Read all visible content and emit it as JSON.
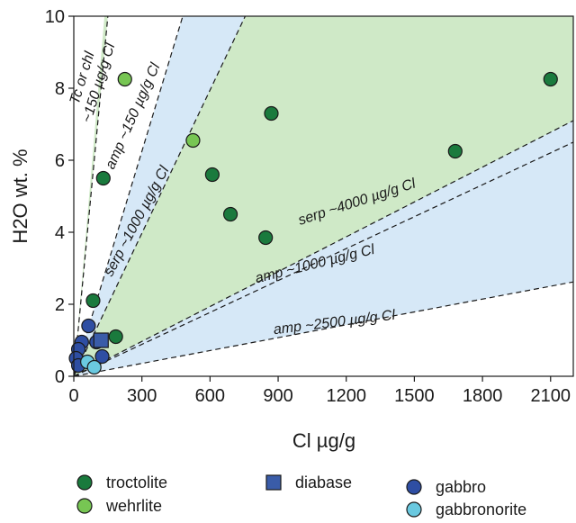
{
  "chart_data": {
    "type": "scatter",
    "xlabel": "Cl µg/g",
    "ylabel": "H2O wt. %",
    "xlim": [
      0,
      2200
    ],
    "ylim": [
      0,
      10
    ],
    "x_ticks": [
      0,
      300,
      600,
      900,
      1200,
      1500,
      1800,
      2100
    ],
    "y_ticks": [
      0,
      2,
      4,
      6,
      8,
      10
    ],
    "x_tick_labels": [
      "0",
      "300",
      "600",
      "900",
      "1200",
      "1500",
      "1800",
      "2100"
    ],
    "y_tick_labels": [
      "0",
      "2",
      "4",
      "6",
      "8",
      "10"
    ],
    "grid": false,
    "legend_position": "bottom",
    "reference_lines": [
      {
        "label": "Tc or chl ~150 µg/g Cl",
        "points": [
          [
            0,
            0
          ],
          [
            150,
            10
          ]
        ]
      },
      {
        "label": "amp ~150 µg/g Cl",
        "points": [
          [
            0,
            0
          ],
          [
            480,
            10
          ]
        ]
      },
      {
        "label": "serp ~1000 µg/g Cl",
        "points": [
          [
            0,
            0
          ],
          [
            755,
            10
          ]
        ]
      },
      {
        "label": "serp ~4000 µg/g Cl",
        "points": [
          [
            0,
            0
          ],
          [
            2200,
            7.1
          ]
        ]
      },
      {
        "label": "amp ~1000 µg/g Cl",
        "points": [
          [
            0,
            0
          ],
          [
            2200,
            6.5
          ]
        ]
      },
      {
        "label": "amp ~2500 µg/g Cl",
        "points": [
          [
            0,
            0
          ],
          [
            2200,
            2.62
          ]
        ]
      }
    ],
    "shaded_regions": [
      {
        "color": "#cfe9c7",
        "polygon": [
          [
            0,
            0
          ],
          [
            135,
            10
          ],
          [
            150,
            10
          ]
        ]
      },
      {
        "color": "#d6e8f7",
        "polygon": [
          [
            0,
            0
          ],
          [
            480,
            10
          ],
          [
            2200,
            10
          ],
          [
            2200,
            6.5
          ]
        ]
      },
      {
        "color": "#cfe9c7",
        "polygon": [
          [
            0,
            0
          ],
          [
            755,
            10
          ],
          [
            2200,
            10
          ],
          [
            2200,
            7.1
          ]
        ]
      },
      {
        "color": "#d6e8f7",
        "polygon": [
          [
            0,
            0
          ],
          [
            2200,
            6.5
          ],
          [
            2200,
            2.62
          ]
        ]
      }
    ],
    "series": [
      {
        "name": "troctolite",
        "marker": "circle",
        "color": "#1a7a3d",
        "x": [
          2100,
          1680,
          870,
          610,
          690,
          845,
          130,
          85,
          185
        ],
        "y": [
          8.25,
          6.25,
          7.3,
          5.6,
          4.5,
          3.85,
          5.5,
          2.1,
          1.1
        ]
      },
      {
        "name": "wehrlite",
        "marker": "circle",
        "color": "#77c653",
        "x": [
          225,
          525
        ],
        "y": [
          8.25,
          6.55
        ]
      },
      {
        "name": "diabase",
        "marker": "square",
        "color": "#3a5ca8",
        "x": [
          120
        ],
        "y": [
          1.0
        ]
      },
      {
        "name": "gabbro",
        "marker": "circle",
        "color": "#2e4ea3",
        "x": [
          65,
          100,
          35,
          20,
          10,
          125,
          20
        ],
        "y": [
          1.4,
          0.95,
          0.95,
          0.75,
          0.5,
          0.55,
          0.3
        ]
      },
      {
        "name": "gabbronorite",
        "marker": "circle",
        "color": "#6ac9e0",
        "x": [
          60,
          90
        ],
        "y": [
          0.4,
          0.25
        ]
      }
    ]
  }
}
